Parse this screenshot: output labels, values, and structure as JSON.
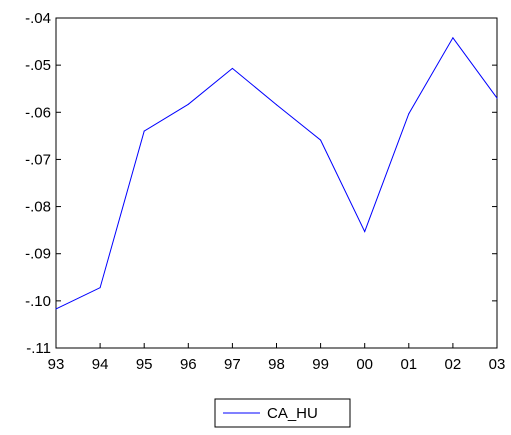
{
  "chart_data": {
    "type": "line",
    "title": "",
    "xlabel": "",
    "ylabel": "",
    "categories": [
      "93",
      "94",
      "95",
      "96",
      "97",
      "98",
      "99",
      "00",
      "01",
      "02",
      "03"
    ],
    "yticks": [
      "-.04",
      "-.05",
      "-.06",
      "-.07",
      "-.08",
      "-.09",
      "-.10",
      "-.11"
    ],
    "ylim": [
      -0.11,
      -0.04
    ],
    "grid": false,
    "legend_position": "bottom-center",
    "series": [
      {
        "name": "CA_HU",
        "color": "#0000ff",
        "values": [
          -0.1017,
          -0.0972,
          -0.064,
          -0.0583,
          -0.0507,
          -0.0584,
          -0.0659,
          -0.0853,
          -0.0603,
          -0.0442,
          -0.057
        ]
      }
    ]
  }
}
